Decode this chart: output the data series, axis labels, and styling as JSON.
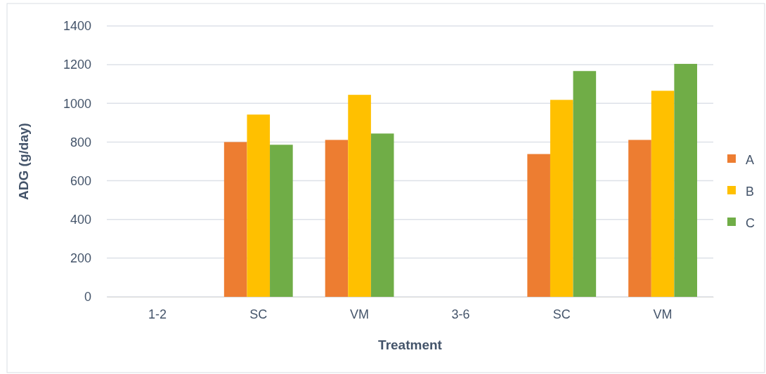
{
  "chart_data": {
    "type": "bar",
    "xlabel": "Treatment",
    "ylabel": "ADG (g/day)",
    "categories": [
      "1-2",
      "SC",
      "VM",
      "3-6",
      "SC",
      "VM"
    ],
    "series": [
      {
        "name": "A",
        "color": "#ed7d31",
        "values": [
          null,
          800,
          811,
          null,
          738,
          811
        ]
      },
      {
        "name": "B",
        "color": "#ffc000",
        "values": [
          null,
          942,
          1044,
          null,
          1018,
          1065
        ]
      },
      {
        "name": "C",
        "color": "#70ad47",
        "values": [
          null,
          786,
          844,
          null,
          1167,
          1204
        ]
      }
    ],
    "ylim": [
      0,
      1400
    ],
    "yticks": [
      0,
      200,
      400,
      600,
      800,
      1000,
      1200,
      1400
    ],
    "grid": "y",
    "legend": "right"
  }
}
